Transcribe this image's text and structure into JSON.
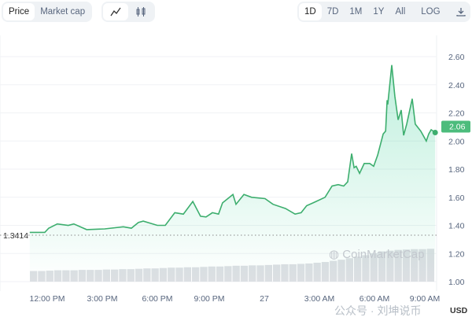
{
  "toolbar": {
    "metric_tabs": [
      {
        "label": "Price",
        "active": true
      },
      {
        "label": "Market cap",
        "active": false
      }
    ],
    "chart_types": [
      {
        "icon": "line-chart-icon",
        "active": true
      },
      {
        "icon": "candlestick-icon",
        "active": false
      }
    ],
    "ranges": [
      {
        "label": "1D",
        "active": true
      },
      {
        "label": "7D"
      },
      {
        "label": "1M"
      },
      {
        "label": "1Y"
      },
      {
        "label": "All"
      }
    ],
    "log_label": "LOG",
    "download_icon": "download-icon"
  },
  "watermark": {
    "brand": "CoinMarketCap",
    "overlay": "公众号 · 刘坤说币"
  },
  "colors": {
    "line": "#3dae6e",
    "fill": "#16c784",
    "tag": "#4cbc7c",
    "volume": "#d3d7dc"
  },
  "chart_data": {
    "type": "line",
    "ylim": [
      1.0,
      2.7
    ],
    "y_ticks": [
      "2.60",
      "2.40",
      "2.20",
      "2.00",
      "1.80",
      "1.60",
      "1.40",
      "1.20",
      "1.00"
    ],
    "x_ticks": [
      "12:00 PM",
      "3:00 PM",
      "6:00 PM",
      "9:00 PM",
      "27",
      "3:00 AM",
      "6:00 AM",
      "9:00 AM"
    ],
    "y_unit": "USD",
    "reference_price": "1.3414",
    "current_price": "2.06",
    "grid": true,
    "series": [
      {
        "x": [
          "26 11:03",
          "26 11:52",
          "26 12:05",
          "26 12:33",
          "26 13:09",
          "26 13:27",
          "26 14:09",
          "26 15:08",
          "26 16:09",
          "26 16:35",
          "26 16:58",
          "26 17:14",
          "26 18:00",
          "26 18:26",
          "26 18:57",
          "26 19:25",
          "26 19:56",
          "26 20:21",
          "26 20:39",
          "26 21:00",
          "26 21:20",
          "26 21:33",
          "26 22:07",
          "26 22:17",
          "26 22:43",
          "26 23:08",
          "26 23:52",
          "27 00:18",
          "27 00:59",
          "27 01:30",
          "27 01:50",
          "27 02:08",
          "27 02:29",
          "27 02:34",
          "27 03:08",
          "27 03:31",
          "27 03:51",
          "27 04:09",
          "27 04:22",
          "27 04:35",
          "27 04:43",
          "27 04:50",
          "27 05:01",
          "27 05:16",
          "27 05:34",
          "27 05:47",
          "27 06:00",
          "27 06:18",
          "27 06:26",
          "27 06:31",
          "27 06:33",
          "27 06:46",
          "27 06:56",
          "27 07:07",
          "27 07:17",
          "27 07:25",
          "27 07:35",
          "27 07:53",
          "27 08:03",
          "27 08:21",
          "27 08:39",
          "27 08:47",
          "27 08:55",
          "27 09:08"
        ],
        "y": [
          1.35,
          1.35,
          1.38,
          1.41,
          1.4,
          1.41,
          1.37,
          1.375,
          1.39,
          1.38,
          1.42,
          1.43,
          1.4,
          1.4,
          1.49,
          1.48,
          1.57,
          1.465,
          1.46,
          1.49,
          1.48,
          1.56,
          1.62,
          1.55,
          1.62,
          1.6,
          1.59,
          1.55,
          1.52,
          1.48,
          1.49,
          1.54,
          1.56,
          1.565,
          1.6,
          1.68,
          1.69,
          1.68,
          1.71,
          1.91,
          1.81,
          1.82,
          1.77,
          1.84,
          1.84,
          1.82,
          1.9,
          2.05,
          2.07,
          2.29,
          2.26,
          2.54,
          2.32,
          2.15,
          2.22,
          2.04,
          2.12,
          2.3,
          2.12,
          2.07,
          2.0,
          2.05,
          2.08,
          2.06
        ]
      }
    ],
    "volume_relative": [
      0.28,
      0.28,
      0.29,
      0.3,
      0.3,
      0.3,
      0.31,
      0.31,
      0.31,
      0.32,
      0.32,
      0.33,
      0.33,
      0.34,
      0.35,
      0.35,
      0.36,
      0.37,
      0.37,
      0.38,
      0.38,
      0.39,
      0.4,
      0.4,
      0.41,
      0.42,
      0.42,
      0.43,
      0.43,
      0.44,
      0.45,
      0.46,
      0.46,
      0.47,
      0.48,
      0.5,
      0.52,
      0.55,
      0.58,
      0.62,
      0.66,
      0.7,
      0.75,
      0.8,
      0.82,
      0.84,
      0.85,
      0.86,
      0.86,
      0.87
    ]
  }
}
